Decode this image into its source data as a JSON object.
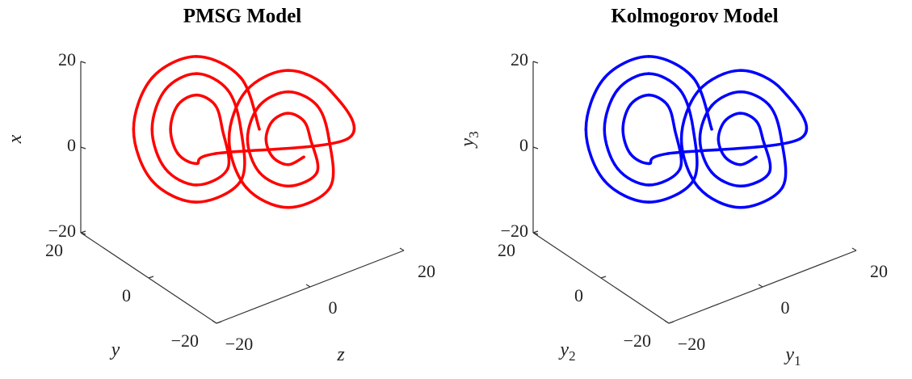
{
  "chart_data": [
    {
      "type": "line3d",
      "title": "PMSG Model",
      "axes": {
        "vertical": {
          "label": {
            "base": "x"
          },
          "lim": [
            -20,
            20
          ],
          "ticks": [
            {
              "value": -20,
              "label": "−20"
            },
            0,
            20
          ]
        },
        "depth": {
          "label": {
            "base": "y"
          },
          "lim": [
            -20,
            20
          ],
          "ticks": [
            {
              "value": -20,
              "label": "−20"
            },
            0,
            20
          ]
        },
        "horizontal": {
          "label": {
            "base": "z"
          },
          "lim": [
            -20,
            20
          ],
          "ticks": [
            {
              "value": -20,
              "label": "−20"
            },
            0,
            20
          ]
        }
      },
      "series": [
        {
          "color": "#ff0000",
          "v": [
            3.7,
            15.7,
            20.7,
            15.7,
            3.7,
            -8.3,
            -13.3,
            -8.3,
            3.7,
            12.9,
            16.7,
            12.9,
            3.7,
            -5.5,
            -9.3,
            -5.5,
            3.7,
            9.4,
            11.7,
            9.4,
            3.7,
            -2,
            -4.3,
            -2,
            6.5,
            17.8,
            22.5,
            17.8,
            6.5,
            -4.8,
            -9.5,
            -4.8,
            6.5,
            14.3,
            17.5,
            14.3,
            6.5,
            -1.3,
            -4.5,
            -1.3,
            6.5,
            10.7,
            12.5,
            10.7,
            6.5,
            2.3,
            0.5,
            2.3
          ],
          "d": [
            1.2,
            3.2,
            8,
            12.8,
            14.8,
            12.8,
            8,
            3.2,
            3.2,
            4.6,
            8,
            11.4,
            12.8,
            11.4,
            8,
            4.6,
            5.2,
            6,
            8,
            10,
            10.8,
            10,
            8,
            6,
            -14.4,
            -12.5,
            -8,
            -3.5,
            -1.6,
            -3.5,
            -8,
            -12.5,
            -12.4,
            -11.1,
            -8,
            -4.9,
            -3.6,
            -4.9,
            -8,
            -11.1,
            -10.4,
            -9.7,
            -8,
            -6.3,
            -5.6,
            -6.3,
            -8,
            -9.7
          ],
          "h": [
            4.5,
            2,
            -4,
            -10,
            -12.5,
            -10,
            -4,
            2,
            2,
            0.2,
            -4,
            -8.2,
            -10,
            -8.2,
            -4,
            0.2,
            -0.5,
            -1.5,
            -4,
            -6.5,
            -7.5,
            -6.5,
            -4,
            -1.5,
            12,
            9.7,
            4,
            -1.7,
            -4,
            -1.7,
            4,
            9.7,
            9.5,
            7.9,
            4,
            0.1,
            -1.5,
            0.1,
            4,
            7.9,
            7,
            6.1,
            4,
            1.9,
            1,
            1.9,
            4,
            6.1
          ]
        }
      ]
    },
    {
      "type": "line3d",
      "title": "Kolmogorov Model",
      "axes": {
        "vertical": {
          "label": {
            "base": "y",
            "sub": "3"
          },
          "lim": [
            -20,
            20
          ],
          "ticks": [
            {
              "value": -20,
              "label": "−20"
            },
            0,
            20
          ]
        },
        "depth": {
          "label": {
            "base": "y",
            "sub": "2"
          },
          "lim": [
            -20,
            20
          ],
          "ticks": [
            {
              "value": -20,
              "label": "−20"
            },
            0,
            20
          ]
        },
        "horizontal": {
          "label": {
            "base": "y",
            "sub": "1"
          },
          "lim": [
            -20,
            20
          ],
          "ticks": [
            {
              "value": -20,
              "label": "−20"
            },
            0,
            20
          ]
        }
      },
      "series": [
        {
          "color": "#0000ff",
          "v": [
            3.7,
            15.7,
            20.7,
            15.7,
            3.7,
            -8.3,
            -13.3,
            -8.3,
            3.7,
            12.9,
            16.7,
            12.9,
            3.7,
            -5.5,
            -9.3,
            -5.5,
            3.7,
            9.4,
            11.7,
            9.4,
            3.7,
            -2,
            -4.3,
            -2,
            6.5,
            17.8,
            22.5,
            17.8,
            6.5,
            -4.8,
            -9.5,
            -4.8,
            6.5,
            14.3,
            17.5,
            14.3,
            6.5,
            -1.3,
            -4.5,
            -1.3,
            6.5,
            10.7,
            12.5,
            10.7,
            6.5,
            2.3,
            0.5,
            2.3
          ],
          "d": [
            1.2,
            3.2,
            8,
            12.8,
            14.8,
            12.8,
            8,
            3.2,
            3.2,
            4.6,
            8,
            11.4,
            12.8,
            11.4,
            8,
            4.6,
            5.2,
            6,
            8,
            10,
            10.8,
            10,
            8,
            6,
            -14.4,
            -12.5,
            -8,
            -3.5,
            -1.6,
            -3.5,
            -8,
            -12.5,
            -12.4,
            -11.1,
            -8,
            -4.9,
            -3.6,
            -4.9,
            -8,
            -11.1,
            -10.4,
            -9.7,
            -8,
            -6.3,
            -5.6,
            -6.3,
            -8,
            -9.7
          ],
          "h": [
            4.5,
            2,
            -4,
            -10,
            -12.5,
            -10,
            -4,
            2,
            2,
            0.2,
            -4,
            -8.2,
            -10,
            -8.2,
            -4,
            0.2,
            -0.5,
            -1.5,
            -4,
            -6.5,
            -7.5,
            -6.5,
            -4,
            -1.5,
            12,
            9.7,
            4,
            -1.7,
            -4,
            -1.7,
            4,
            9.7,
            9.5,
            7.9,
            4,
            0.1,
            -1.5,
            0.1,
            4,
            7.9,
            7,
            6.1,
            4,
            1.9,
            1,
            1.9,
            4,
            6.1
          ]
        }
      ]
    }
  ]
}
